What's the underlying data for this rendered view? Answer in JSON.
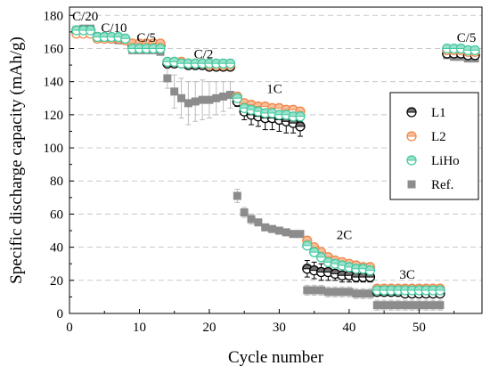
{
  "chart_data": {
    "type": "scatter",
    "xlabel": "Cycle number",
    "ylabel": "Specific discharge capacity (mAh/g)",
    "xlim": [
      0,
      59
    ],
    "ylim": [
      0,
      185
    ],
    "xticks": [
      0,
      10,
      20,
      30,
      40,
      50
    ],
    "yticks": [
      0,
      20,
      40,
      60,
      80,
      100,
      120,
      140,
      160,
      180
    ],
    "grid": "horizontal-dashed",
    "legend_position": "right",
    "annotations": [
      {
        "text": "C/20",
        "x": 0.4,
        "y": 177
      },
      {
        "text": "C/10",
        "x": 4.5,
        "y": 170
      },
      {
        "text": "C/5",
        "x": 9.6,
        "y": 164
      },
      {
        "text": "C/2",
        "x": 17.8,
        "y": 154
      },
      {
        "text": "1C",
        "x": 28.2,
        "y": 133
      },
      {
        "text": "2C",
        "x": 38.2,
        "y": 45
      },
      {
        "text": "3C",
        "x": 47.2,
        "y": 21
      },
      {
        "text": "C/5",
        "x": 55.4,
        "y": 164
      }
    ],
    "series": [
      {
        "name": "L1",
        "marker": "circle-half",
        "color": "#000000",
        "x": [
          1,
          2,
          3,
          4,
          5,
          6,
          7,
          8,
          9,
          10,
          11,
          12,
          13,
          14,
          15,
          16,
          17,
          18,
          19,
          20,
          21,
          22,
          23,
          24,
          25,
          26,
          27,
          28,
          29,
          30,
          31,
          32,
          33,
          34,
          35,
          36,
          37,
          38,
          39,
          40,
          41,
          42,
          43,
          44,
          45,
          46,
          47,
          48,
          49,
          50,
          51,
          52,
          53,
          54,
          55,
          56,
          57,
          58
        ],
        "y": [
          171,
          171,
          171,
          167,
          167,
          166,
          166,
          165,
          162,
          162,
          162,
          162,
          162,
          151,
          151,
          151,
          150,
          150,
          150,
          149,
          149,
          149,
          149,
          128,
          122,
          120,
          119,
          118,
          118,
          117,
          116,
          115,
          113,
          27,
          26,
          25,
          25,
          24,
          23,
          23,
          22,
          22,
          22,
          13,
          13,
          13,
          13,
          12,
          12,
          12,
          12,
          12,
          12,
          157,
          157,
          157,
          156,
          156
        ],
        "err": [
          1,
          1,
          1,
          1,
          1,
          1,
          1,
          1,
          1,
          1,
          1,
          1,
          1,
          1,
          1,
          1,
          1,
          1,
          1,
          1,
          1,
          1,
          1,
          3,
          5,
          6,
          6,
          7,
          7,
          7,
          7,
          6,
          6,
          5,
          5,
          5,
          5,
          4,
          4,
          4,
          3,
          3,
          3,
          2,
          2,
          2,
          2,
          2,
          2,
          2,
          2,
          2,
          2,
          2,
          2,
          2,
          2,
          2
        ]
      },
      {
        "name": "L2",
        "marker": "circle-half",
        "color": "#f0884a",
        "x": [
          1,
          2,
          3,
          4,
          5,
          6,
          7,
          8,
          9,
          10,
          11,
          12,
          13,
          14,
          15,
          16,
          17,
          18,
          19,
          20,
          21,
          22,
          23,
          24,
          25,
          26,
          27,
          28,
          29,
          30,
          31,
          32,
          33,
          34,
          35,
          36,
          37,
          38,
          39,
          40,
          41,
          42,
          43,
          44,
          45,
          46,
          47,
          48,
          49,
          50,
          51,
          52,
          53,
          54,
          55,
          56,
          57,
          58
        ],
        "y": [
          169,
          169,
          169,
          166,
          166,
          166,
          166,
          165,
          163,
          163,
          163,
          163,
          163,
          152,
          152,
          152,
          151,
          151,
          151,
          150,
          150,
          150,
          150,
          131,
          127,
          126,
          125,
          125,
          124,
          124,
          123,
          123,
          122,
          44,
          40,
          37,
          34,
          32,
          31,
          30,
          29,
          28,
          28,
          15,
          15,
          15,
          15,
          15,
          15,
          15,
          15,
          15,
          15,
          159,
          159,
          159,
          158,
          158
        ],
        "err": [
          1,
          1,
          1,
          1,
          1,
          1,
          1,
          1,
          1,
          1,
          1,
          1,
          1,
          1,
          1,
          1,
          1,
          1,
          1,
          1,
          1,
          1,
          1,
          2,
          2,
          2,
          2,
          2,
          2,
          2,
          2,
          2,
          2,
          2,
          2,
          2,
          2,
          2,
          2,
          2,
          2,
          2,
          2,
          1,
          1,
          1,
          1,
          1,
          1,
          1,
          1,
          1,
          1,
          1,
          1,
          1,
          1,
          1
        ]
      },
      {
        "name": "LiHo",
        "marker": "circle-half",
        "color": "#45c9a0",
        "x": [
          1,
          2,
          3,
          4,
          5,
          6,
          7,
          8,
          9,
          10,
          11,
          12,
          13,
          14,
          15,
          16,
          17,
          18,
          19,
          20,
          21,
          22,
          23,
          24,
          25,
          26,
          27,
          28,
          29,
          30,
          31,
          32,
          33,
          34,
          35,
          36,
          37,
          38,
          39,
          40,
          41,
          42,
          43,
          44,
          45,
          46,
          47,
          48,
          49,
          50,
          51,
          52,
          53,
          54,
          55,
          56,
          57,
          58
        ],
        "y": [
          171,
          171,
          171,
          167,
          167,
          167,
          167,
          166,
          160,
          160,
          160,
          160,
          160,
          152,
          152,
          151,
          151,
          151,
          151,
          151,
          151,
          151,
          151,
          130,
          124,
          123,
          122,
          121,
          121,
          120,
          120,
          119,
          119,
          41,
          37,
          34,
          31,
          30,
          29,
          28,
          27,
          27,
          26,
          14,
          14,
          14,
          14,
          14,
          14,
          14,
          14,
          14,
          14,
          160,
          160,
          160,
          159,
          159
        ],
        "err": [
          1,
          1,
          1,
          1,
          1,
          1,
          1,
          1,
          1,
          1,
          1,
          1,
          1,
          1,
          1,
          2,
          2,
          2,
          2,
          2,
          2,
          2,
          2,
          3,
          3,
          3,
          3,
          3,
          3,
          3,
          3,
          3,
          3,
          2,
          2,
          2,
          2,
          2,
          2,
          2,
          2,
          2,
          2,
          1,
          1,
          1,
          1,
          1,
          1,
          1,
          1,
          1,
          1,
          1,
          1,
          1,
          1,
          1
        ]
      },
      {
        "name": "Ref.",
        "marker": "square",
        "color": "#8c8c8c",
        "x": [
          1,
          2,
          3,
          4,
          5,
          6,
          7,
          8,
          9,
          10,
          11,
          12,
          13,
          14,
          15,
          16,
          17,
          18,
          19,
          20,
          21,
          22,
          23,
          24,
          25,
          26,
          27,
          28,
          29,
          30,
          31,
          32,
          33,
          34,
          35,
          36,
          37,
          38,
          39,
          40,
          41,
          42,
          43,
          44,
          45,
          46,
          47,
          48,
          49,
          50,
          51,
          52,
          53,
          54,
          55,
          56,
          57,
          58
        ],
        "y": [
          171,
          172,
          172,
          166,
          166,
          166,
          165,
          165,
          159,
          159,
          159,
          159,
          158,
          142,
          134,
          130,
          127,
          128,
          129,
          129,
          130,
          131,
          132,
          71,
          61,
          57,
          55,
          52,
          51,
          50,
          49,
          48,
          48,
          14,
          14,
          14,
          13,
          13,
          13,
          13,
          12,
          12,
          12,
          5,
          5,
          5,
          5,
          5,
          5,
          5,
          5,
          5,
          5,
          156,
          155,
          155,
          154,
          154
        ],
        "err": [
          1,
          1,
          1,
          1,
          1,
          1,
          1,
          1,
          1,
          1,
          1,
          1,
          2,
          6,
          10,
          12,
          13,
          12,
          12,
          11,
          10,
          9,
          8,
          4,
          3,
          3,
          2,
          2,
          2,
          2,
          2,
          2,
          2,
          3,
          3,
          3,
          3,
          3,
          3,
          3,
          3,
          3,
          3,
          3,
          3,
          3,
          3,
          3,
          3,
          3,
          3,
          3,
          3,
          2,
          2,
          2,
          2,
          2
        ]
      }
    ]
  }
}
